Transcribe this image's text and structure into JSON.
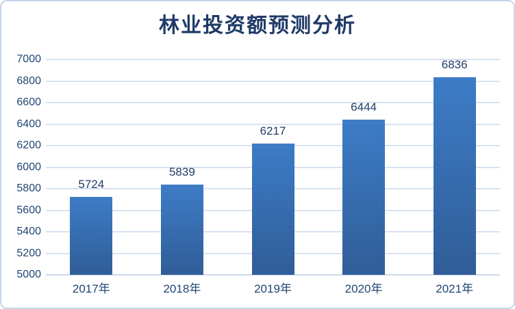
{
  "chart_data": {
    "type": "bar",
    "title": "林业投资额预测分析",
    "categories": [
      "2017年",
      "2018年",
      "2019年",
      "2020年",
      "2021年"
    ],
    "values": [
      5724,
      5839,
      6217,
      6444,
      6836
    ],
    "value_labels": [
      "5724",
      "5839",
      "6217",
      "6444",
      "6836"
    ],
    "xlabel": "",
    "ylabel": "",
    "ylim": [
      5000,
      7000
    ],
    "ytick_step": 200,
    "ytick_labels": [
      "5000",
      "5200",
      "5400",
      "5600",
      "5800",
      "6000",
      "6200",
      "6400",
      "6600",
      "6800",
      "7000"
    ],
    "grid": true,
    "legend_position": "none",
    "data_labels_shown": true,
    "colors": {
      "bar_gradient_top": "#3d7cc6",
      "bar_gradient_bottom": "#305d98",
      "title_text": "#1f3a68",
      "axis_label_text": "#1f4573",
      "value_label_text": "#203c68",
      "gridline": "#d7e2f1",
      "axis_line": "#ccdaec",
      "frame_border": "#c5d6ea",
      "background": "#ffffff"
    }
  }
}
